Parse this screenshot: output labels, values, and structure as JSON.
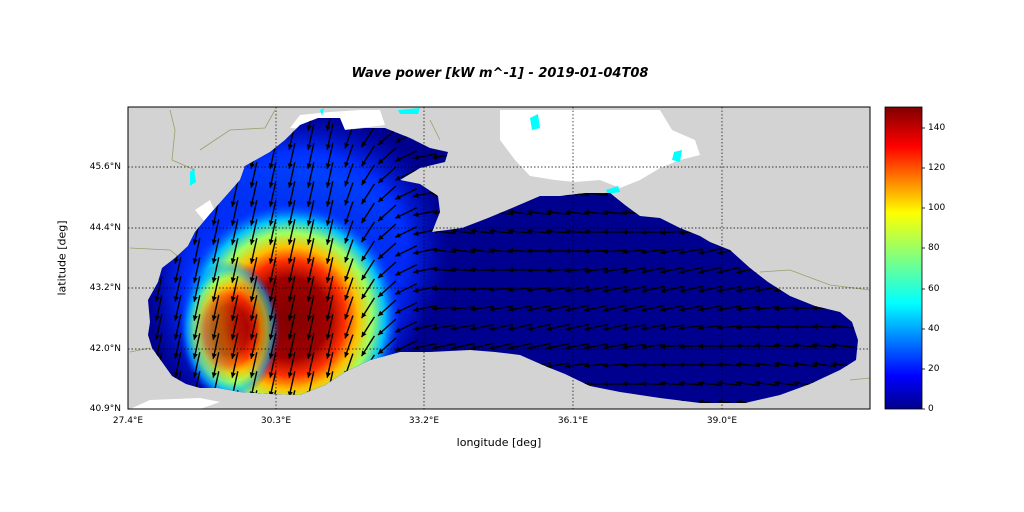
{
  "title": "Wave power [kW m^-1] - 2019-01-04T08",
  "xlabel": "longitude [deg]",
  "ylabel": "latitude [deg]",
  "x_ticks": [
    "27.4°E",
    "30.3°E",
    "33.2°E",
    "36.1°E",
    "39.0°E"
  ],
  "y_ticks": [
    "45.6°N",
    "44.4°N",
    "43.2°N",
    "42.0°N",
    "40.9°N"
  ],
  "colorbar": {
    "ticks": [
      "0",
      "20",
      "40",
      "60",
      "80",
      "100",
      "120",
      "140"
    ],
    "min": 0,
    "max": 150,
    "colormap": "jet"
  },
  "colors": {
    "land": "#d3d3d3",
    "inland_water": "#00ffff",
    "sea_low": "#00008b",
    "peak": "#800000"
  },
  "chart_data": {
    "type": "heatmap",
    "title": "Wave power [kW m^-1] - 2019-01-04T08",
    "xlabel": "longitude [deg]",
    "ylabel": "latitude [deg]",
    "xlim": [
      27.4,
      42.0
    ],
    "ylim": [
      40.9,
      46.8
    ],
    "colorbar_range": [
      0,
      150
    ],
    "grid": true,
    "peak_region": {
      "lon": 30.8,
      "lat": 42.6,
      "value": 150
    },
    "vectors": "wave direction arrows over sea; southward in western basin, westward in eastern basin"
  }
}
